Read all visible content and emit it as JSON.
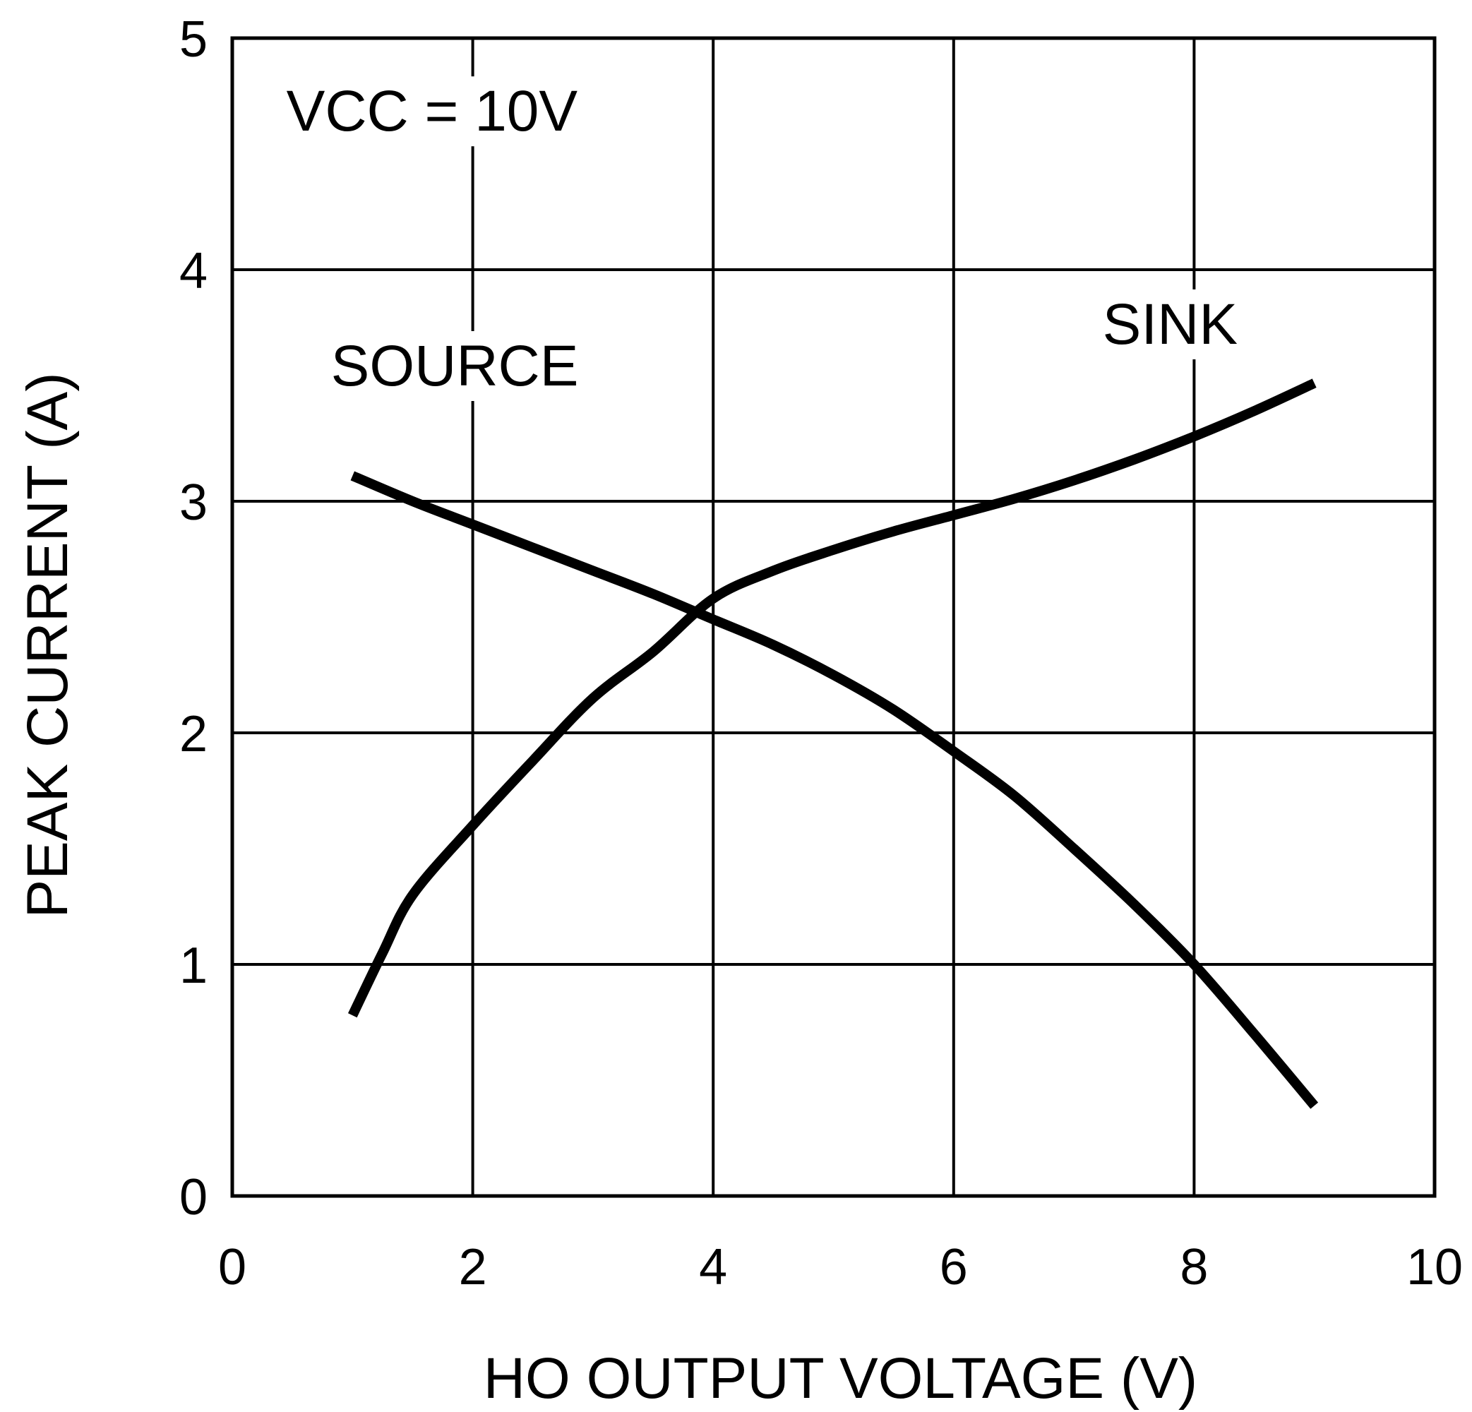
{
  "chart_data": {
    "type": "line",
    "xlabel": "HO OUTPUT VOLTAGE (V)",
    "ylabel": "PEAK CURRENT (A)",
    "xlim": [
      0,
      10
    ],
    "ylim": [
      0,
      5
    ],
    "xticks": [
      "0",
      "2",
      "4",
      "6",
      "8",
      "10"
    ],
    "yticks": [
      "0",
      "1",
      "2",
      "3",
      "4",
      "5"
    ],
    "grid": true,
    "annotation": "VCC = 10V",
    "series": [
      {
        "name": "SOURCE",
        "x": [
          1.0,
          1.5,
          2.0,
          2.5,
          3.0,
          3.5,
          4.0,
          4.5,
          5.0,
          5.5,
          6.0,
          6.5,
          7.0,
          7.5,
          8.0,
          8.5,
          9.0
        ],
        "y": [
          3.11,
          3.0,
          2.9,
          2.8,
          2.7,
          2.6,
          2.49,
          2.38,
          2.25,
          2.1,
          1.92,
          1.73,
          1.5,
          1.26,
          1.0,
          0.7,
          0.39
        ]
      },
      {
        "name": "SINK",
        "x": [
          1.0,
          1.25,
          1.5,
          2.0,
          2.5,
          3.0,
          3.5,
          4.0,
          4.5,
          5.0,
          5.5,
          6.0,
          6.5,
          7.0,
          7.5,
          8.0,
          8.5,
          9.0
        ],
        "y": [
          0.78,
          1.05,
          1.3,
          1.6,
          1.88,
          2.15,
          2.35,
          2.58,
          2.7,
          2.79,
          2.87,
          2.94,
          3.01,
          3.09,
          3.18,
          3.28,
          3.39,
          3.51
        ]
      }
    ]
  }
}
